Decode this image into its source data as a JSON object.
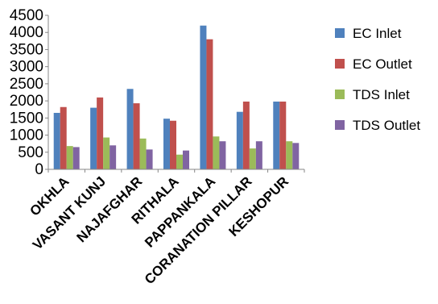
{
  "chart_data": {
    "type": "bar",
    "title": "",
    "xlabel": "",
    "ylabel": "",
    "ylim": [
      0,
      4500
    ],
    "yticks": [
      0,
      500,
      1000,
      1500,
      2000,
      2500,
      3000,
      3500,
      4000,
      4500
    ],
    "grid": false,
    "legend_position": "right",
    "categories": [
      "OKHLA",
      "VASANT KUNJ",
      "NAJAFGHAR",
      "RITHALA",
      "PAPPANKALA",
      "CORANATION PILLAR",
      "KESHOPUR"
    ],
    "series": [
      {
        "name": "EC Inlet",
        "color": "#4f81bd",
        "values": [
          1650,
          1800,
          2350,
          1480,
          4200,
          1680,
          1980
        ]
      },
      {
        "name": "EC Outlet",
        "color": "#c0504d",
        "values": [
          1820,
          2100,
          1930,
          1420,
          3800,
          1980,
          1980
        ]
      },
      {
        "name": "TDS Inlet",
        "color": "#9bbb59",
        "values": [
          680,
          930,
          900,
          430,
          960,
          610,
          820
        ]
      },
      {
        "name": "TDS Outlet",
        "color": "#8064a2",
        "values": [
          650,
          700,
          580,
          550,
          820,
          820,
          770
        ]
      }
    ]
  }
}
